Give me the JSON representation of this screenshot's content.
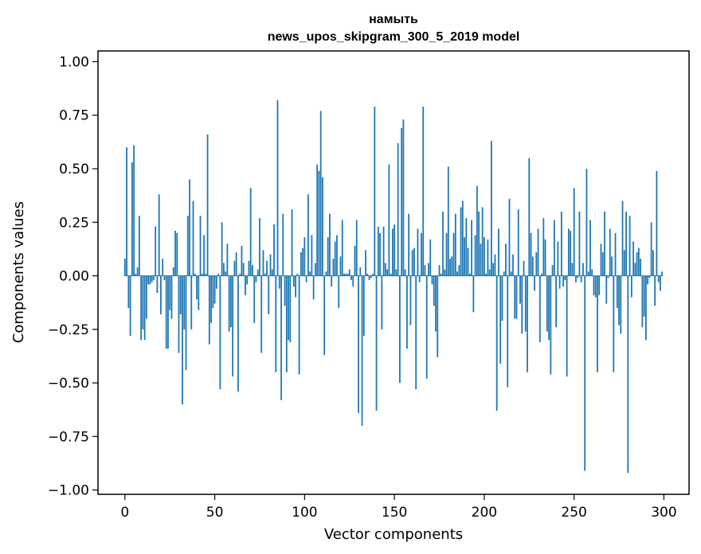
{
  "chart_data": {
    "type": "bar",
    "title": "намыть",
    "subtitle": "news_upos_skipgram_300_5_2019 model",
    "xlabel": "Vector components",
    "ylabel": "Components values",
    "xlim": [
      -15,
      314
    ],
    "ylim": [
      -1.02,
      1.05
    ],
    "xticks": [
      0,
      50,
      100,
      150,
      200,
      250,
      300
    ],
    "xtick_labels": [
      "0",
      "50",
      "100",
      "150",
      "200",
      "250",
      "300"
    ],
    "yticks": [
      -1.0,
      -0.75,
      -0.5,
      -0.25,
      0.0,
      0.25,
      0.5,
      0.75,
      1.0
    ],
    "ytick_labels": [
      "−1.00",
      "−0.75",
      "−0.50",
      "−0.25",
      "0.00",
      "0.25",
      "0.50",
      "0.75",
      "1.00"
    ],
    "bar_color": "#1f77b4",
    "values": [
      0.08,
      0.6,
      -0.15,
      -0.28,
      0.53,
      0.61,
      0.01,
      0.04,
      0.28,
      -0.3,
      -0.25,
      -0.3,
      -0.2,
      -0.04,
      -0.04,
      -0.03,
      -0.02,
      0.23,
      -0.08,
      0.38,
      -0.18,
      0.08,
      -0.02,
      -0.34,
      -0.34,
      -0.16,
      -0.2,
      0.04,
      0.21,
      0.2,
      -0.36,
      -0.18,
      -0.6,
      -0.25,
      -0.44,
      0.28,
      0.45,
      -0.25,
      0.35,
      0.01,
      -0.11,
      -0.16,
      0.28,
      0.01,
      0.19,
      0.01,
      0.66,
      -0.32,
      -0.22,
      -0.15,
      -0.13,
      -0.06,
      0.01,
      -0.53,
      0.25,
      0.06,
      0.02,
      0.15,
      -0.26,
      -0.24,
      -0.47,
      0.07,
      0.11,
      -0.54,
      0.01,
      0.14,
      0.06,
      -0.09,
      -0.04,
      0.07,
      0.41,
      0.05,
      -0.22,
      -0.03,
      0.03,
      0.27,
      -0.36,
      0.12,
      0.01,
      0.07,
      -0.18,
      0.1,
      0.03,
      0.24,
      -0.45,
      0.82,
      -0.06,
      -0.58,
      0.29,
      -0.14,
      -0.45,
      -0.3,
      -0.31,
      0.31,
      -0.05,
      -0.1,
      0.01,
      -0.46,
      0.11,
      0.13,
      0.18,
      -0.03,
      0.38,
      0.02,
      0.19,
      -0.11,
      0.06,
      0.52,
      0.49,
      0.77,
      0.46,
      -0.37,
      0.02,
      0.18,
      0.29,
      -0.05,
      0.08,
      0.16,
      0.19,
      -0.15,
      0.09,
      0.26,
      0.01,
      0.01,
      0.01,
      0.03,
      -0.02,
      -0.05,
      0.14,
      0.26,
      -0.64,
      0.04,
      -0.7,
      -0.28,
      0.12,
      0.01,
      -0.02,
      -0.01,
      0.01,
      0.79,
      -0.63,
      0.23,
      0.2,
      -0.25,
      0.23,
      0.06,
      0.03,
      0.52,
      0.01,
      0.22,
      0.24,
      0.03,
      0.62,
      -0.5,
      0.69,
      0.73,
      0.03,
      -0.34,
      0.29,
      -0.23,
      0.12,
      0.13,
      -0.53,
      0.22,
      -0.03,
      0.2,
      0.79,
      0.05,
      -0.48,
      0.06,
      0.17,
      -0.04,
      -0.14,
      -0.26,
      -0.38,
      0.05,
      0.01,
      0.3,
      0.03,
      0.2,
      0.51,
      0.08,
      0.09,
      0.2,
      0.29,
      0.02,
      0.05,
      0.32,
      0.35,
      0.18,
      0.27,
      0.13,
      0.01,
      0.26,
      -0.17,
      0.19,
      0.42,
      0.3,
      0.15,
      0.32,
      0.18,
      0.01,
      0.17,
      0.03,
      0.63,
      0.06,
      0.1,
      -0.63,
      0.22,
      -0.41,
      -0.21,
      0.02,
      0.15,
      -0.52,
      0.36,
      0.02,
      0.1,
      -0.2,
      -0.2,
      0.31,
      -0.13,
      -0.27,
      0.07,
      -0.26,
      -0.45,
      0.55,
      0.2,
      0.09,
      -0.07,
      0.11,
      0.22,
      -0.31,
      0.01,
      0.27,
      0.17,
      -0.26,
      -0.3,
      -0.46,
      0.05,
      0.26,
      -0.24,
      0.16,
      -0.06,
      0.3,
      -0.05,
      -0.02,
      -0.47,
      0.22,
      0.21,
      0.06,
      0.41,
      -0.03,
      -0.01,
      0.3,
      -0.03,
      0.06,
      -0.91,
      0.5,
      0.02,
      0.26,
      0.03,
      -0.09,
      -0.1,
      -0.45,
      -0.09,
      0.15,
      0.11,
      0.3,
      -0.13,
      -0.01,
      0.22,
      0.09,
      -0.45,
      0.2,
      -0.15,
      -0.23,
      -0.27,
      0.35,
      0.12,
      0.3,
      -0.92,
      0.28,
      -0.1,
      0.16,
      0.06,
      0.11,
      0.13,
      0.08,
      -0.24,
      -0.19,
      -0.3,
      -0.04,
      -0.01,
      0.25,
      0.12,
      -0.14,
      0.49,
      -0.03,
      -0.07,
      0.02
    ]
  }
}
